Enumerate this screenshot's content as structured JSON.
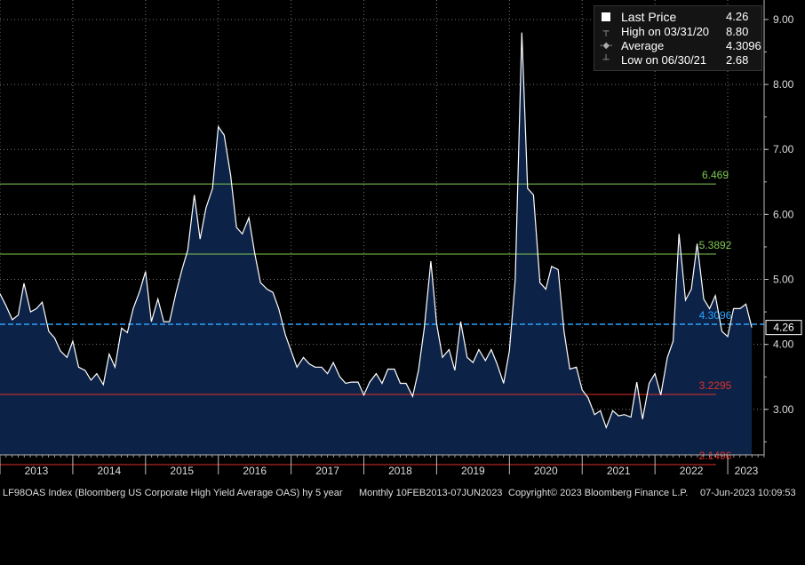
{
  "legend": {
    "last_label": "Last Price",
    "last_value": "4.26",
    "high_label": "High on 03/31/20",
    "high_value": "8.80",
    "avg_label": "Average",
    "avg_value": "4.3096",
    "low_label": "Low on 06/30/21",
    "low_value": "2.68"
  },
  "footer": {
    "ticker": "LF98OAS Index (Bloomberg US Corporate High Yield Average OAS) hy 5 year",
    "range": "Monthly 10FEB2013-07JUN2023",
    "copyright": "Copyright© 2023 Bloomberg Finance L.P.",
    "timestamp": "07-Jun-2023 10:09:53"
  },
  "colors": {
    "background": "#000000",
    "line": "#ffffff",
    "area": "#0d2247",
    "average": "#29a3ff",
    "green": "#7ec850",
    "red": "#e0302a",
    "grid": "#777777"
  },
  "chart_data": {
    "type": "area",
    "title": "",
    "xlabel": "",
    "ylabel": "",
    "ylim": [
      2.3,
      9.3
    ],
    "xlim": [
      2013.0,
      2023.72
    ],
    "y_ticks": [
      "3.00",
      "4.00",
      "5.00",
      "6.00",
      "7.00",
      "8.00",
      "9.00"
    ],
    "x_ticks": [
      "2013",
      "2014",
      "2015",
      "2016",
      "2017",
      "2018",
      "2019",
      "2020",
      "2021",
      "2022",
      "2023"
    ],
    "grid": true,
    "last_price_label": "4.26",
    "reference_lines": [
      {
        "value": 4.3096,
        "label": "4.3096",
        "style": "dashed",
        "color": "#29a3ff"
      },
      {
        "value": 6.469,
        "label": "6.469",
        "color": "#7ec850"
      },
      {
        "value": 5.3892,
        "label": "5.3892",
        "color": "#7ec850"
      },
      {
        "value": 3.2295,
        "label": "3.2295",
        "color": "#e0302a"
      },
      {
        "value": 2.1496,
        "label": "2.1496",
        "color": "#e0302a"
      }
    ],
    "series": [
      {
        "values": [
          [
            2012.5,
            4.78
          ],
          [
            2012.58,
            4.6
          ],
          [
            2012.67,
            4.38
          ],
          [
            2012.75,
            4.45
          ],
          [
            2012.83,
            4.94
          ],
          [
            2012.92,
            4.5
          ],
          [
            2013.0,
            4.55
          ],
          [
            2013.08,
            4.65
          ],
          [
            2013.17,
            4.2
          ],
          [
            2013.25,
            4.1
          ],
          [
            2013.33,
            3.9
          ],
          [
            2013.42,
            3.8
          ],
          [
            2013.5,
            4.05
          ],
          [
            2013.58,
            3.65
          ],
          [
            2013.67,
            3.6
          ],
          [
            2013.75,
            3.45
          ],
          [
            2013.83,
            3.55
          ],
          [
            2013.92,
            3.38
          ],
          [
            2014.0,
            3.85
          ],
          [
            2014.08,
            3.65
          ],
          [
            2014.17,
            4.25
          ],
          [
            2014.25,
            4.18
          ],
          [
            2014.33,
            4.55
          ],
          [
            2014.42,
            4.82
          ],
          [
            2014.5,
            5.12
          ],
          [
            2014.58,
            4.35
          ],
          [
            2014.67,
            4.7
          ],
          [
            2014.75,
            4.35
          ],
          [
            2014.83,
            4.35
          ],
          [
            2014.92,
            4.8
          ],
          [
            2015.0,
            5.15
          ],
          [
            2015.08,
            5.45
          ],
          [
            2015.17,
            6.3
          ],
          [
            2015.25,
            5.62
          ],
          [
            2015.33,
            6.1
          ],
          [
            2015.42,
            6.4
          ],
          [
            2015.5,
            7.35
          ],
          [
            2015.58,
            7.22
          ],
          [
            2015.67,
            6.6
          ],
          [
            2015.75,
            5.8
          ],
          [
            2015.83,
            5.7
          ],
          [
            2015.92,
            5.95
          ],
          [
            2016.0,
            5.4
          ],
          [
            2016.08,
            4.95
          ],
          [
            2016.17,
            4.85
          ],
          [
            2016.25,
            4.8
          ],
          [
            2016.33,
            4.55
          ],
          [
            2016.42,
            4.15
          ],
          [
            2016.5,
            3.9
          ],
          [
            2016.58,
            3.65
          ],
          [
            2016.67,
            3.8
          ],
          [
            2016.75,
            3.7
          ],
          [
            2016.83,
            3.65
          ],
          [
            2016.92,
            3.65
          ],
          [
            2017.0,
            3.55
          ],
          [
            2017.08,
            3.72
          ],
          [
            2017.17,
            3.5
          ],
          [
            2017.25,
            3.4
          ],
          [
            2017.33,
            3.42
          ],
          [
            2017.42,
            3.42
          ],
          [
            2017.5,
            3.22
          ],
          [
            2017.58,
            3.42
          ],
          [
            2017.67,
            3.55
          ],
          [
            2017.75,
            3.4
          ],
          [
            2017.83,
            3.62
          ],
          [
            2017.92,
            3.62
          ],
          [
            2018.0,
            3.4
          ],
          [
            2018.08,
            3.4
          ],
          [
            2018.17,
            3.2
          ],
          [
            2018.25,
            3.6
          ],
          [
            2018.33,
            4.25
          ],
          [
            2018.42,
            5.28
          ],
          [
            2018.5,
            4.32
          ],
          [
            2018.58,
            3.8
          ],
          [
            2018.67,
            3.92
          ],
          [
            2018.75,
            3.6
          ],
          [
            2018.83,
            4.35
          ],
          [
            2018.92,
            3.8
          ],
          [
            2019.0,
            3.72
          ],
          [
            2019.08,
            3.92
          ],
          [
            2019.17,
            3.75
          ],
          [
            2019.25,
            3.92
          ],
          [
            2019.33,
            3.7
          ],
          [
            2019.42,
            3.4
          ],
          [
            2019.5,
            3.9
          ],
          [
            2019.58,
            5.0
          ],
          [
            2019.67,
            8.8
          ],
          [
            2019.75,
            6.4
          ],
          [
            2019.83,
            6.3
          ],
          [
            2019.92,
            4.95
          ],
          [
            2020.0,
            4.85
          ],
          [
            2020.08,
            5.2
          ],
          [
            2020.17,
            5.15
          ],
          [
            2020.25,
            4.2
          ],
          [
            2020.33,
            3.62
          ],
          [
            2020.42,
            3.65
          ],
          [
            2020.5,
            3.3
          ],
          [
            2020.58,
            3.18
          ],
          [
            2020.67,
            2.92
          ],
          [
            2020.75,
            2.98
          ],
          [
            2020.83,
            2.72
          ],
          [
            2020.92,
            2.98
          ],
          [
            2021.0,
            2.9
          ],
          [
            2021.08,
            2.92
          ],
          [
            2021.17,
            2.88
          ],
          [
            2021.25,
            3.42
          ],
          [
            2021.33,
            2.85
          ],
          [
            2021.42,
            3.4
          ],
          [
            2021.5,
            3.55
          ],
          [
            2021.58,
            3.22
          ],
          [
            2021.67,
            3.8
          ],
          [
            2021.75,
            4.05
          ],
          [
            2021.83,
            5.7
          ],
          [
            2021.92,
            4.68
          ],
          [
            2022.0,
            4.85
          ],
          [
            2022.08,
            5.55
          ],
          [
            2022.17,
            4.7
          ],
          [
            2022.25,
            4.55
          ],
          [
            2022.33,
            4.75
          ],
          [
            2022.42,
            4.2
          ],
          [
            2022.5,
            4.12
          ],
          [
            2022.58,
            4.55
          ],
          [
            2022.67,
            4.55
          ],
          [
            2022.75,
            4.62
          ],
          [
            2022.83,
            4.26
          ]
        ]
      }
    ]
  }
}
